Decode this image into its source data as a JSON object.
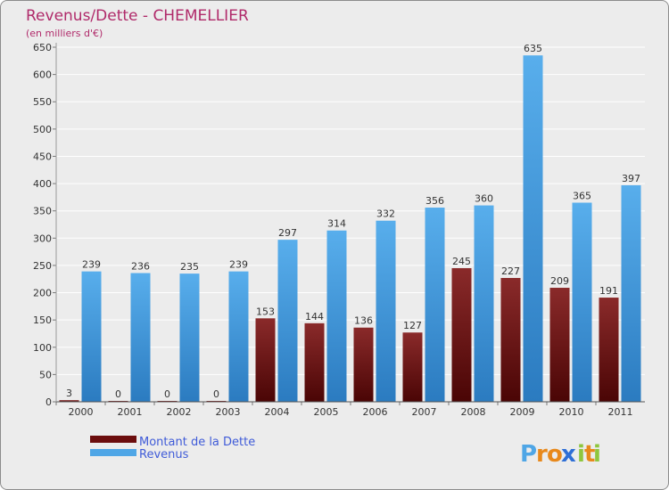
{
  "chart_data": {
    "type": "bar",
    "title": "Revenus/Dette - CHEMELLIER",
    "subtitle": "(en milliers d'€)",
    "categories": [
      "2000",
      "2001",
      "2002",
      "2003",
      "2004",
      "2005",
      "2006",
      "2007",
      "2008",
      "2009",
      "2010",
      "2011"
    ],
    "series": [
      {
        "name": "Montant de la Dette",
        "color": "#6b0d0d",
        "values": [
          3,
          0,
          0,
          0,
          153,
          144,
          136,
          127,
          245,
          227,
          209,
          191
        ]
      },
      {
        "name": "Revenus",
        "color": "#4fa6e6",
        "values": [
          239,
          236,
          235,
          239,
          297,
          314,
          332,
          356,
          360,
          635,
          365,
          397
        ]
      }
    ],
    "yticks": [
      0,
      50,
      100,
      150,
      200,
      250,
      300,
      350,
      400,
      450,
      500,
      550,
      600,
      650
    ],
    "ylim": [
      0,
      650
    ],
    "grid": true,
    "legend_position": "bottom-left"
  },
  "logo": {
    "letters": [
      "P",
      "r",
      "o",
      "x",
      "i",
      "t",
      "i"
    ],
    "colors": [
      "#4fa6e6",
      "#e8891c",
      "#e8891c",
      "#2f6fd6",
      "#8fc63e",
      "#e8891c",
      "#8fc63e"
    ]
  }
}
